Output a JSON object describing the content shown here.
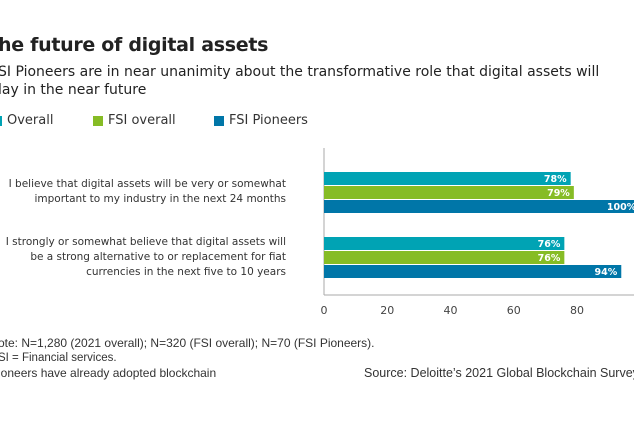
{
  "title": "he future of digital assets",
  "subtitle": [
    "SI Pioneers are in near unanimity about the transformative role that digital assets will",
    "lay in the near future"
  ],
  "colors": {
    "overall": "#00a3b4",
    "fsi_overall": "#86bc25",
    "fsi_pioneers": "#0076a8"
  },
  "chart_data": {
    "type": "bar",
    "orientation": "horizontal",
    "categories": [
      [
        "I believe that digital assets will be very or somewhat",
        "important to my industry in the next 24 months"
      ],
      [
        "I strongly or somewhat believe that digital assets will",
        "be a strong alternative to or replacement for fiat",
        "currencies in the next five to 10 years"
      ]
    ],
    "series": [
      {
        "name": "Overall",
        "color": "#00a3b4",
        "values": [
          78,
          76
        ],
        "labels": [
          "78%",
          "76%"
        ]
      },
      {
        "name": "FSI overall",
        "color": "#86bc25",
        "values": [
          79,
          76
        ],
        "labels": [
          "79%",
          "76%"
        ]
      },
      {
        "name": "FSI Pioneers",
        "color": "#0076a8",
        "values": [
          100,
          94
        ],
        "labels": [
          "100%",
          "94%"
        ]
      }
    ],
    "xlim": [
      0,
      100
    ],
    "xticks": [
      "0",
      "20",
      "40",
      "60",
      "80"
    ],
    "grid": false,
    "legend": "top-left"
  },
  "notes": [
    "ote:  N=1,280 (2021 overall); N=320 (FSI overall); N=70 (FSI Pioneers).",
    "SI = Financial services.",
    "ioneers have already adopted blockchain"
  ],
  "source": "Source: Deloitte’s 2021 Global Blockchain Survey"
}
